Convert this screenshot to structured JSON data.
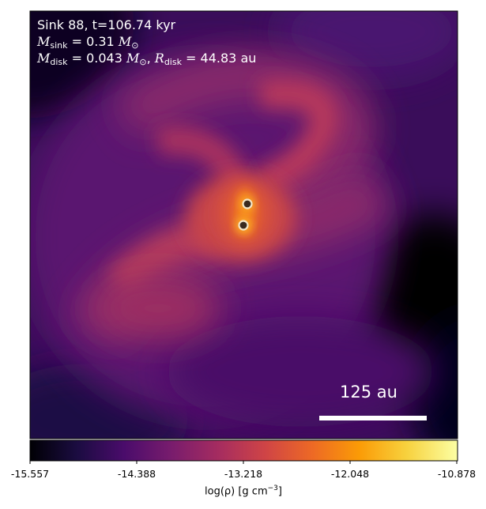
{
  "title_line": "Sink 88, t=106.74 kyr",
  "annotations": {
    "msink_symbol": "M",
    "msink_sub": "sink",
    "msink_value": " = 0.31 ",
    "msun_symbol": "M",
    "msun_sub": "⊙",
    "mdisk_symbol": "M",
    "mdisk_sub": "disk",
    "mdisk_value": " = 0.043 ",
    "rdisk_symbol": "R",
    "rdisk_sub": "disk",
    "rdisk_value": " = 44.83 au",
    "separator": ", "
  },
  "scale_bar": {
    "label": "125 au"
  },
  "colorbar": {
    "label_prefix": "log(ρ) [g cm",
    "label_exp": "−3",
    "label_suffix": "]",
    "ticks": [
      "-15.557",
      "-14.388",
      "-13.218",
      "-12.048",
      "-10.878"
    ],
    "colormap": "inferno-like",
    "colors": [
      "#000004",
      "#1b0c41",
      "#4a0c6b",
      "#781c6d",
      "#a52c60",
      "#cf4446",
      "#ed6925",
      "#fb9b06",
      "#f7d13d",
      "#fcffa4"
    ]
  },
  "sinks": {
    "count": 2,
    "marker_fill": "#3a2a20",
    "marker_edge": "#f5e6c8"
  }
}
